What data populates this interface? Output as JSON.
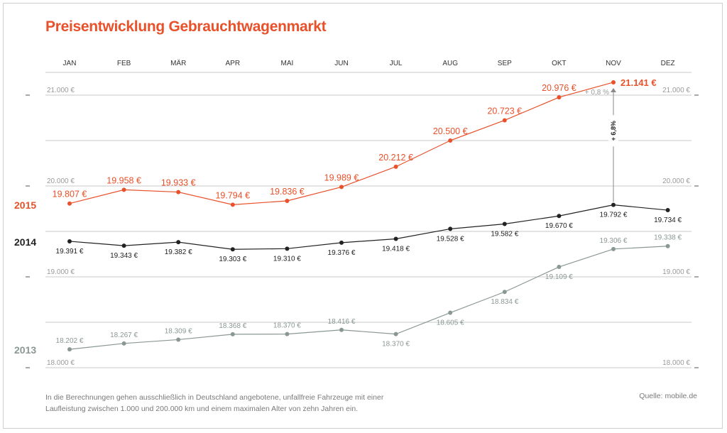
{
  "title": "Preisentwicklung Gebrauchtwagenmarkt",
  "footnote_line1": "In die Berechnungen gehen ausschließlich in Deutschland angebotene, unfallfreie Fahrzeuge mit einer",
  "footnote_line2": "Laufleistung zwischen 1.000 und 200.000 km und einem maximalen Alter von zehn Jahren ein.",
  "source": "Quelle: mobile.de",
  "colors": {
    "2015": "#e8512a",
    "2014": "#222222",
    "2013": "#8a9894",
    "grid": "#c8c8c8"
  },
  "chart_data": {
    "type": "line",
    "title": "Preisentwicklung Gebrauchtwagenmarkt",
    "categories": [
      "JAN",
      "FEB",
      "MÄR",
      "APR",
      "MAI",
      "JUN",
      "JUL",
      "AUG",
      "SEP",
      "OKT",
      "NOV",
      "DEZ"
    ],
    "ylim": [
      18000,
      21000
    ],
    "yticks": [
      {
        "value": 21000,
        "label": "21.000 €"
      },
      {
        "value": 20000,
        "label": "20.000 €"
      },
      {
        "value": 19000,
        "label": "19.000 €"
      },
      {
        "value": 18000,
        "label": "18.000 €"
      }
    ],
    "grid": true,
    "series": [
      {
        "name": "2015",
        "values": [
          19807,
          19958,
          19933,
          19794,
          19836,
          19989,
          20212,
          20500,
          20723,
          20976,
          21141,
          null
        ],
        "labels": [
          "19.807 €",
          "19.958 €",
          "19.933 €",
          "19.794 €",
          "19.836 €",
          "19.989 €",
          "20.212 €",
          "20.500 €",
          "20.723 €",
          "20.976 €",
          "21.141 €",
          ""
        ]
      },
      {
        "name": "2014",
        "values": [
          19391,
          19343,
          19382,
          19303,
          19310,
          19376,
          19418,
          19528,
          19582,
          19670,
          19792,
          19734
        ],
        "labels": [
          "19.391 €",
          "19.343 €",
          "19.382 €",
          "19.303 €",
          "19.310 €",
          "19.376 €",
          "19.418 €",
          "19.528 €",
          "19.582 €",
          "19.670 €",
          "19.792 €",
          "19.734 €"
        ]
      },
      {
        "name": "2013",
        "values": [
          18202,
          18267,
          18309,
          18368,
          18370,
          18416,
          18370,
          18605,
          18834,
          19109,
          19306,
          19338
        ],
        "labels": [
          "18.202 €",
          "18.267 €",
          "18.309 €",
          "18.368 €",
          "18.370 €",
          "18.416 €",
          "18.370 €",
          "18.605 €",
          "18.834 €",
          "19.109 €",
          "19.306 €",
          "19.338 €"
        ]
      }
    ],
    "annotations": [
      {
        "text": "+ 0,8 %",
        "month": "NOV"
      },
      {
        "text": "+ 6,8%",
        "month": "NOV"
      }
    ]
  }
}
